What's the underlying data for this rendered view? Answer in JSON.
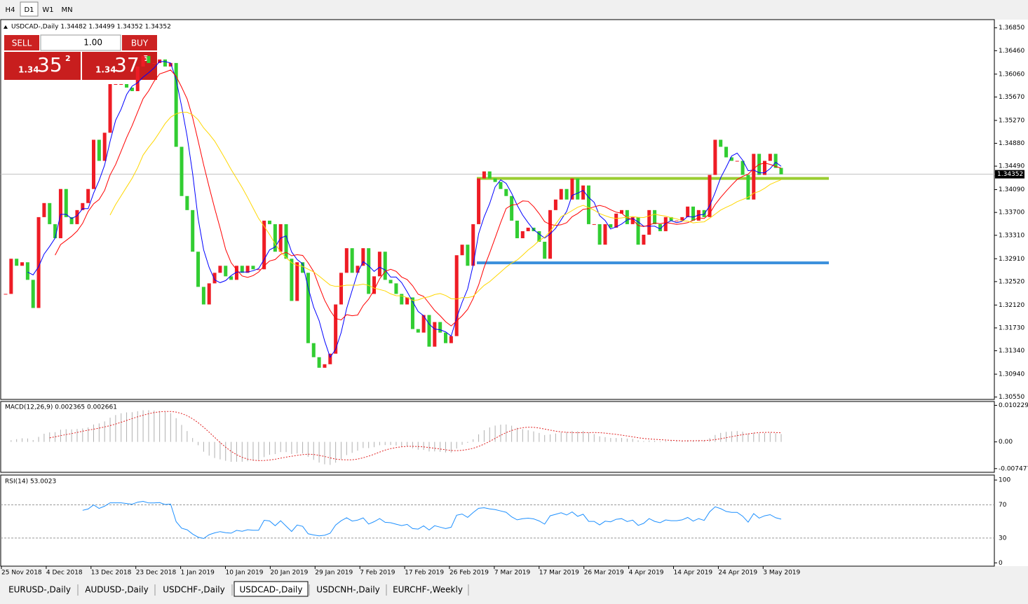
{
  "toolbar": {
    "timeframes": [
      "H4",
      "D1",
      "W1",
      "MN"
    ],
    "active": 1
  },
  "trade_panel": {
    "sell": "SELL",
    "buy": "BUY",
    "lot": "1.00",
    "bid_big": "1.34",
    "bid_main": "35",
    "bid_sup": "2",
    "ask_big": "1.34",
    "ask_main": "37",
    "ask_sup": "5"
  },
  "chart_data": {
    "type": "candlestick",
    "title": "USDCAD-,Daily  1.34482 1.34499 1.34352 1.34352",
    "up_color": "#ee1c25",
    "down_color": "#32cd32",
    "close": [
      1.3231,
      1.3291,
      1.3279,
      1.3285,
      1.3255,
      1.3207,
      1.3362,
      1.3386,
      1.335,
      1.3326,
      1.341,
      1.3362,
      1.335,
      1.3374,
      1.3386,
      1.341,
      1.3494,
      1.3458,
      1.3506,
      1.3589,
      1.3589,
      1.3589,
      1.3583,
      1.3577,
      1.3619,
      1.3637,
      1.3625,
      1.3625,
      1.3631,
      1.3619,
      1.3625,
      1.3482,
      1.3398,
      1.3374,
      1.3303,
      1.3243,
      1.3213,
      1.3249,
      1.3267,
      1.3279,
      1.3261,
      1.3255,
      1.3279,
      1.3267,
      1.3279,
      1.3273,
      1.3273,
      1.3356,
      1.335,
      1.3303,
      1.335,
      1.3291,
      1.3219,
      1.3285,
      1.3267,
      1.3147,
      1.3123,
      1.3105,
      1.3111,
      1.3129,
      1.3213,
      1.3267,
      1.3309,
      1.3267,
      1.3279,
      1.3309,
      1.3231,
      1.3261,
      1.3303,
      1.3255,
      1.3249,
      1.3231,
      1.3213,
      1.3225,
      1.3171,
      1.3165,
      1.3195,
      1.3141,
      1.3183,
      1.3165,
      1.3147,
      1.3159,
      1.3297,
      1.3315,
      1.3279,
      1.335,
      1.3428,
      1.344,
      1.3428,
      1.3422,
      1.341,
      1.3398,
      1.3356,
      1.3326,
      1.3338,
      1.3344,
      1.3338,
      1.332,
      1.3291,
      1.3374,
      1.3392,
      1.341,
      1.3392,
      1.3428,
      1.3392,
      1.3416,
      1.335,
      1.335,
      1.3315,
      1.335,
      1.3344,
      1.3368,
      1.3374,
      1.335,
      1.3362,
      1.3315,
      1.3332,
      1.3374,
      1.335,
      1.3338,
      1.3362,
      1.3356,
      1.3356,
      1.3362,
      1.338,
      1.3356,
      1.3374,
      1.3362,
      1.3434,
      1.3494,
      1.3482,
      1.3464,
      1.3458,
      1.3458,
      1.3434,
      1.3392,
      1.347,
      1.3434,
      1.3458,
      1.347,
      1.3446,
      1.3435
    ],
    "ma": [
      {
        "period": 5,
        "color": "#0000ff"
      },
      {
        "period": 10,
        "color": "#ff0000"
      },
      {
        "period": 20,
        "color": "#ffd700"
      }
    ],
    "levels": [
      {
        "price": 1.3428,
        "color": "#9acd32"
      },
      {
        "price": 1.3284,
        "color": "#3a8fdc"
      }
    ],
    "current_price": 1.34352,
    "ylim": [
      1.3051,
      1.3699
    ],
    "yticks": [
      {
        "value": 1.3685,
        "label": "1.36850"
      },
      {
        "value": 1.3646,
        "label": "1.36460"
      },
      {
        "value": 1.3606,
        "label": "1.36060"
      },
      {
        "value": 1.3567,
        "label": "1.35670"
      },
      {
        "value": 1.3527,
        "label": "1.35270"
      },
      {
        "value": 1.3488,
        "label": "1.34880"
      },
      {
        "value": 1.3449,
        "label": "1.34490"
      },
      {
        "value": 1.3409,
        "label": "1.34090"
      },
      {
        "value": 1.337,
        "label": "1.33700"
      },
      {
        "value": 1.3331,
        "label": "1.33310"
      },
      {
        "value": 1.3291,
        "label": "1.32910"
      },
      {
        "value": 1.3252,
        "label": "1.32520"
      },
      {
        "value": 1.3212,
        "label": "1.32120"
      },
      {
        "value": 1.3173,
        "label": "1.31730"
      },
      {
        "value": 1.3134,
        "label": "1.31340"
      },
      {
        "value": 1.3094,
        "label": "1.30940"
      },
      {
        "value": 1.3055,
        "label": "1.30550"
      }
    ],
    "dates": [
      "25 Nov 2018",
      "4 Dec 2018",
      "13 Dec 2018",
      "23 Dec 2018",
      "1 Jan 2019",
      "10 Jan 2019",
      "20 Jan 2019",
      "29 Jan 2019",
      "7 Feb 2019",
      "17 Feb 2019",
      "26 Feb 2019",
      "7 Mar 2019",
      "17 Mar 2019",
      "26 Mar 2019",
      "4 Apr 2019",
      "14 Apr 2019",
      "24 Apr 2019",
      "3 May 2019"
    ],
    "macd": {
      "label": "MACD(12,26,9) 0.002365 0.002661",
      "ylim": [
        -0.0085,
        0.0113
      ],
      "yticks": [
        0.010229,
        {
          "value": 0,
          "label": "0.00"
        },
        -0.007477
      ]
    },
    "rsi": {
      "label": "RSI(14) 53.0023",
      "ylim": [
        -4,
        106
      ],
      "yticks": [
        100,
        70,
        30,
        0
      ]
    }
  },
  "tabs": {
    "items": [
      "EURUSD-,Daily",
      "AUDUSD-,Daily",
      "USDCHF-,Daily",
      "USDCAD-,Daily",
      "USDCNH-,Daily",
      "EURCHF-,Weekly"
    ],
    "active": 3
  }
}
